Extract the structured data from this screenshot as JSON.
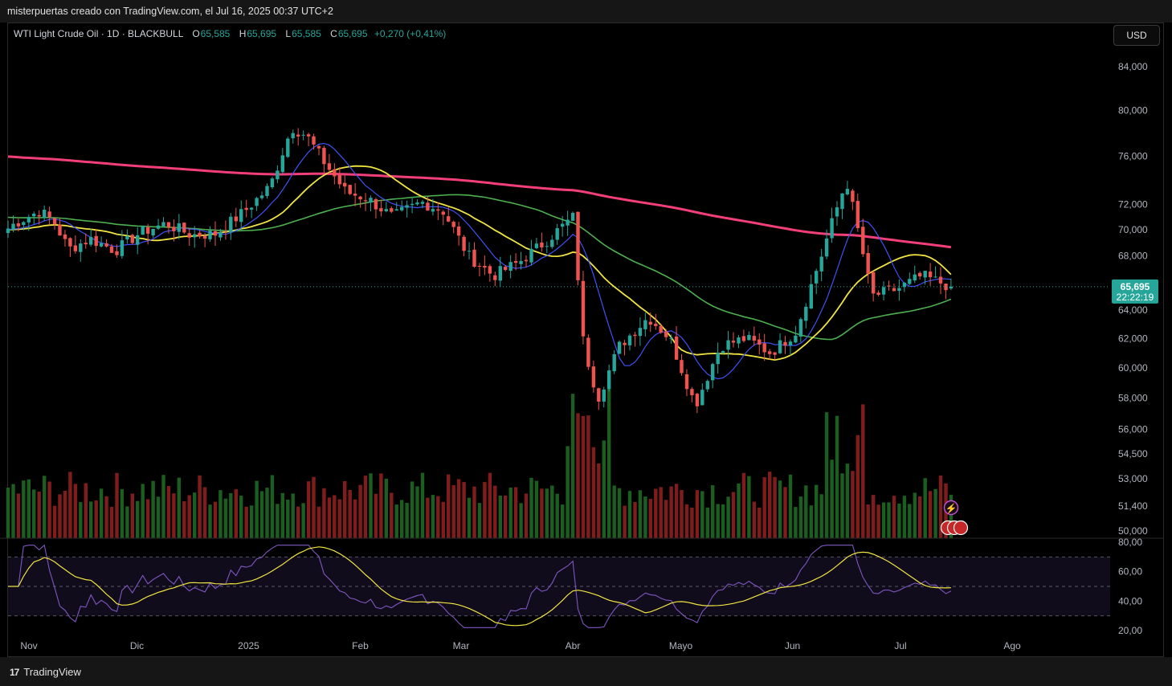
{
  "header": {
    "caption": "misterpuertas creado con TradingView.com, el Jul 16, 2025 00:37 UTC+2"
  },
  "legend": {
    "symbol": "WTI Light Crude Oil · 1D · BLACKBULL",
    "open_label": "O",
    "open": "65,585",
    "high_label": "H",
    "high": "65,695",
    "low_label": "L",
    "low": "65,585",
    "close_label": "C",
    "close": "65,695",
    "change": "+0,270 (+0,41%)"
  },
  "currency_button": "USD",
  "price_badge": {
    "price": "65,695",
    "countdown": "22:22:19"
  },
  "footer": {
    "brand": "TradingView",
    "logo": "17"
  },
  "colors": {
    "up": "#26a69a",
    "down": "#ef5350",
    "ma200": "#f23f7a",
    "ma50": "#4caf50",
    "ma20": "#f0e442",
    "ma9": "#3f51f5",
    "rsi": "#7e57c2",
    "rsi_ma": "#f0e442",
    "vol_up": "#1b5e20",
    "vol_down": "#7f1d1d"
  },
  "chart_data": {
    "type": "candlestick",
    "y_scale": "log",
    "price_axis": [
      "84,000",
      "80,000",
      "76,000",
      "72,000",
      "70,000",
      "68,000",
      "64,000",
      "62,000",
      "60,000",
      "58,000",
      "56,000",
      "54,500",
      "53,000",
      "51,400",
      "50,000"
    ],
    "price_axis_values": [
      84,
      80,
      76,
      72,
      70,
      68,
      64,
      62,
      60,
      58,
      56,
      54.5,
      53,
      51.4,
      50
    ],
    "rsi_axis": [
      "80,00",
      "60,00",
      "40,00",
      "20,00"
    ],
    "rsi_axis_values": [
      80,
      60,
      40,
      20
    ],
    "rsi_levels": [
      70,
      50,
      30
    ],
    "x_labels": [
      "Nov",
      "Dic",
      "2025",
      "Feb",
      "Mar",
      "Abr",
      "Mayo",
      "Jun",
      "Jul",
      "Ago"
    ],
    "x_label_dates": [
      "2024-11-01",
      "2024-12-01",
      "2025-01-01",
      "2025-02-01",
      "2025-03-01",
      "2025-04-01",
      "2025-05-01",
      "2025-06-01",
      "2025-07-01",
      "2025-08-01"
    ],
    "last_price": 65.695,
    "closes": [
      {
        "date": "2024-10-21",
        "close": 69.0
      },
      {
        "date": "2024-10-28",
        "close": 70.5
      },
      {
        "date": "2024-11-04",
        "close": 71.5
      },
      {
        "date": "2024-11-08",
        "close": 70.6
      },
      {
        "date": "2024-11-12",
        "close": 68.5
      },
      {
        "date": "2024-11-18",
        "close": 69.3
      },
      {
        "date": "2024-11-25",
        "close": 68.4
      },
      {
        "date": "2024-12-02",
        "close": 69.8
      },
      {
        "date": "2024-12-09",
        "close": 70.5
      },
      {
        "date": "2024-12-16",
        "close": 69.6
      },
      {
        "date": "2024-12-23",
        "close": 69.7
      },
      {
        "date": "2024-12-31",
        "close": 71.5
      },
      {
        "date": "2025-01-07",
        "close": 73.5
      },
      {
        "date": "2025-01-13",
        "close": 78.5
      },
      {
        "date": "2025-01-17",
        "close": 77.8
      },
      {
        "date": "2025-01-22",
        "close": 75.5
      },
      {
        "date": "2025-01-28",
        "close": 73.0
      },
      {
        "date": "2025-02-03",
        "close": 72.5
      },
      {
        "date": "2025-02-10",
        "close": 71.0
      },
      {
        "date": "2025-02-18",
        "close": 72.2
      },
      {
        "date": "2025-02-24",
        "close": 71.5
      },
      {
        "date": "2025-03-03",
        "close": 68.0
      },
      {
        "date": "2025-03-10",
        "close": 66.5
      },
      {
        "date": "2025-03-17",
        "close": 67.5
      },
      {
        "date": "2025-03-24",
        "close": 69.0
      },
      {
        "date": "2025-04-01",
        "close": 71.0
      },
      {
        "date": "2025-04-04",
        "close": 61.5
      },
      {
        "date": "2025-04-08",
        "close": 58.0
      },
      {
        "date": "2025-04-14",
        "close": 61.5
      },
      {
        "date": "2025-04-22",
        "close": 63.5
      },
      {
        "date": "2025-04-28",
        "close": 62.0
      },
      {
        "date": "2025-05-05",
        "close": 57.5
      },
      {
        "date": "2025-05-12",
        "close": 61.5
      },
      {
        "date": "2025-05-19",
        "close": 62.0
      },
      {
        "date": "2025-05-26",
        "close": 61.0
      },
      {
        "date": "2025-06-02",
        "close": 62.5
      },
      {
        "date": "2025-06-09",
        "close": 68.0
      },
      {
        "date": "2025-06-16",
        "close": 74.0
      },
      {
        "date": "2025-06-23",
        "close": 65.0
      },
      {
        "date": "2025-06-30",
        "close": 65.5
      },
      {
        "date": "2025-07-07",
        "close": 66.5
      },
      {
        "date": "2025-07-15",
        "close": 65.695
      }
    ],
    "indicators": [
      "MA 9",
      "MA 20",
      "MA 50",
      "MA 200",
      "Volume",
      "RSI 14"
    ]
  }
}
